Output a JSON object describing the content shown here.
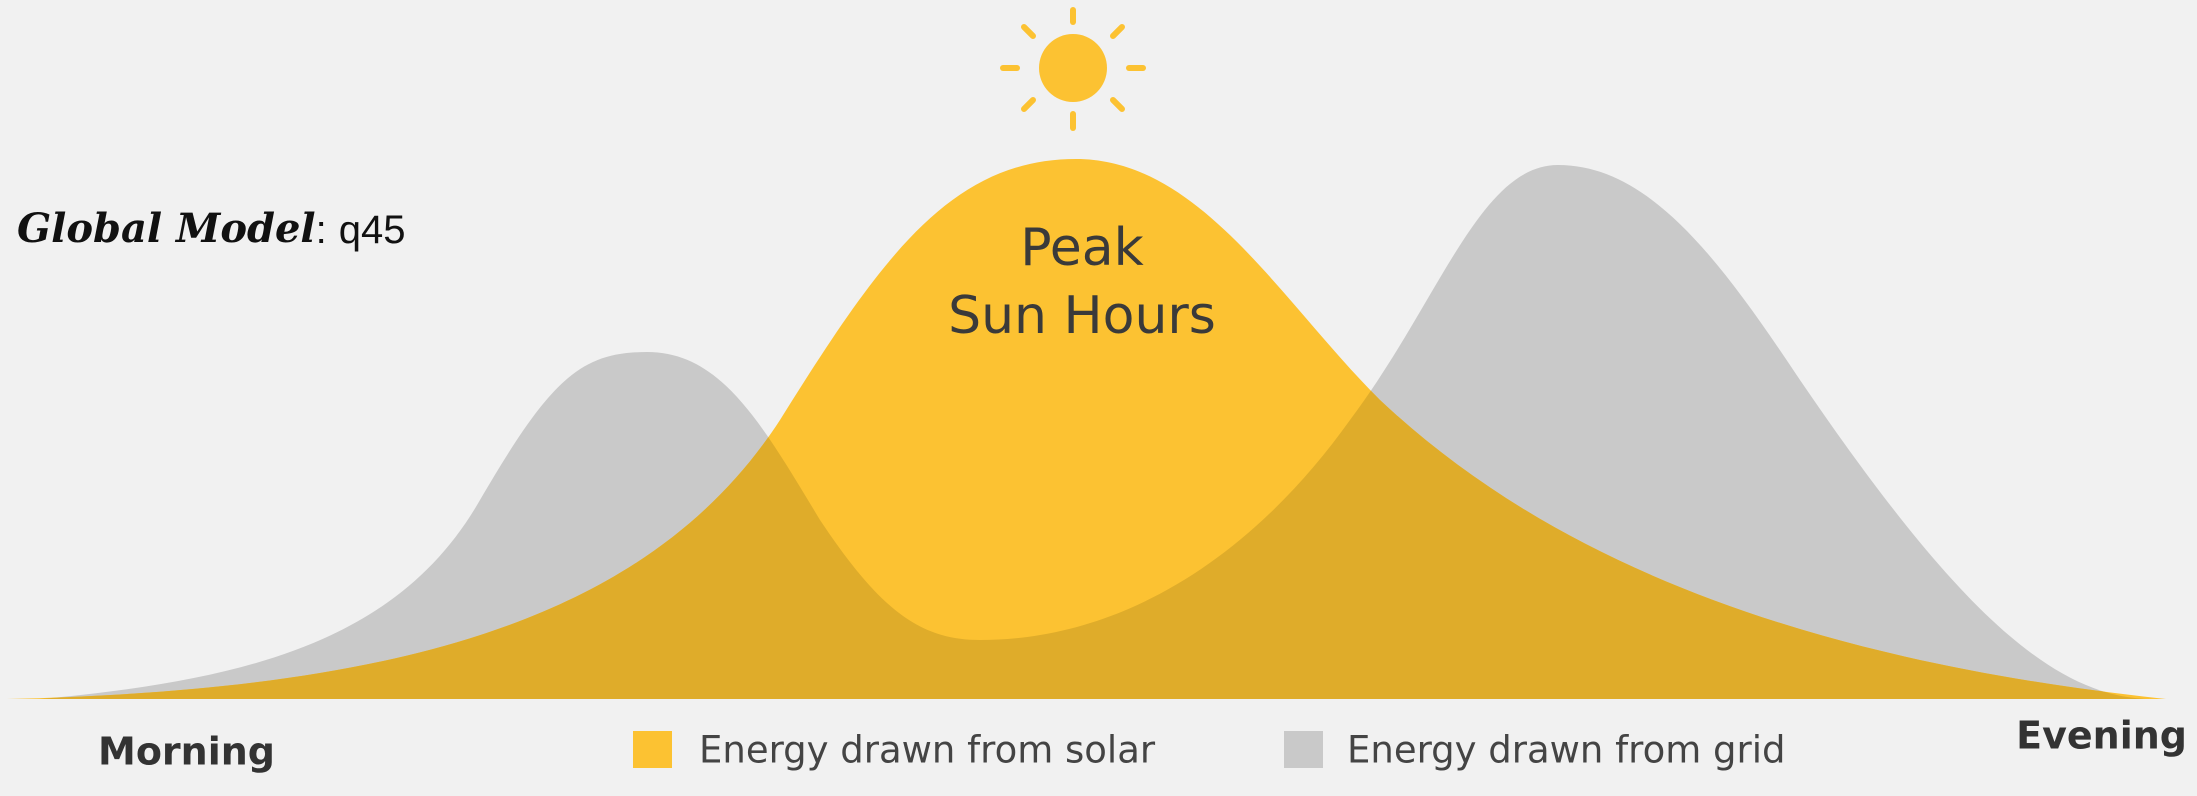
{
  "header": {
    "label": "Global Model",
    "separator": ":",
    "value": "q45"
  },
  "peak": {
    "line1": "Peak",
    "line2": "Sun Hours"
  },
  "axis": {
    "start": "Morning",
    "end": "Evening"
  },
  "legend": [
    {
      "label": "Energy drawn from solar",
      "color": "#fcc232"
    },
    {
      "label": "Energy drawn from grid",
      "color": "#c9c9c9"
    }
  ]
}
